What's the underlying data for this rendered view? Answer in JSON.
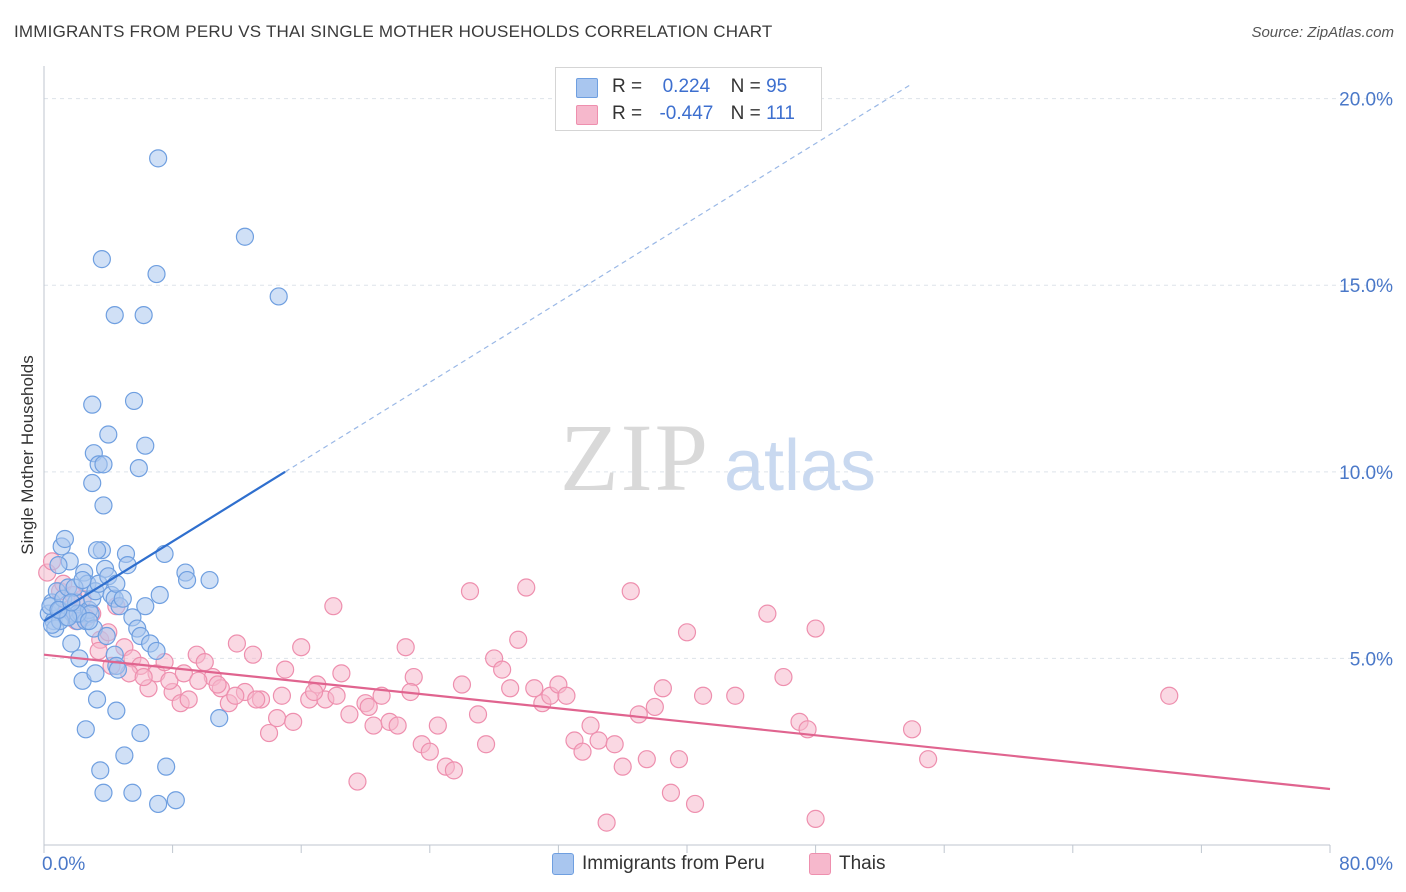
{
  "title": "IMMIGRANTS FROM PERU VS THAI SINGLE MOTHER HOUSEHOLDS CORRELATION CHART",
  "source": "Source: ZipAtlas.com",
  "watermark": {
    "zip": "ZIP",
    "atlas": "atlas"
  },
  "colors": {
    "blue_fill": "#a9c6ef",
    "blue_stroke": "#6f9fe0",
    "blue_line": "#2f6fce",
    "pink_fill": "#f6b8cc",
    "pink_stroke": "#ee8fae",
    "pink_line": "#e0648f",
    "axis_text": "#4a78c8",
    "grid": "#dde3ea"
  },
  "legend": {
    "rows": [
      {
        "r_label": "R =",
        "r_value": "0.224",
        "n_label": "N =",
        "n_value": "95"
      },
      {
        "r_label": "R =",
        "r_value": "-0.447",
        "n_label": "N =",
        "n_value": "111"
      }
    ]
  },
  "chart_data": {
    "type": "scatter",
    "xlabel": "",
    "ylabel": "Single Mother Households",
    "xlim": [
      0,
      80
    ],
    "ylim": [
      0,
      20.5
    ],
    "x_ticks": [
      "0.0%",
      "80.0%"
    ],
    "y_ticks": [
      {
        "value": 5,
        "label": "5.0%"
      },
      {
        "value": 10,
        "label": "10.0%"
      },
      {
        "value": 15,
        "label": "15.0%"
      },
      {
        "value": 20,
        "label": "20.0%"
      }
    ],
    "series": [
      {
        "name": "Immigrants from Peru",
        "color": "#a9c6ef",
        "trend": {
          "x0": 0,
          "y0": 6.0,
          "x1": 15,
          "y1": 10.0,
          "dashed_to_x": 54,
          "dashed_to_y": 20.4
        },
        "points": [
          [
            0.3,
            6.2
          ],
          [
            0.5,
            6.5
          ],
          [
            0.6,
            6.0
          ],
          [
            0.8,
            6.8
          ],
          [
            0.4,
            6.4
          ],
          [
            0.7,
            5.8
          ],
          [
            1.0,
            6.3
          ],
          [
            1.2,
            6.6
          ],
          [
            1.4,
            6.1
          ],
          [
            1.5,
            6.9
          ],
          [
            1.1,
            8.0
          ],
          [
            1.3,
            8.2
          ],
          [
            1.6,
            7.6
          ],
          [
            1.8,
            6.2
          ],
          [
            2.0,
            6.5
          ],
          [
            2.1,
            6.0
          ],
          [
            2.3,
            6.2
          ],
          [
            2.5,
            7.3
          ],
          [
            2.6,
            6.0
          ],
          [
            2.8,
            6.3
          ],
          [
            1.7,
            5.4
          ],
          [
            2.2,
            5.0
          ],
          [
            2.4,
            4.4
          ],
          [
            2.7,
            7.0
          ],
          [
            3.0,
            6.6
          ],
          [
            3.2,
            6.8
          ],
          [
            3.4,
            7.0
          ],
          [
            3.6,
            7.9
          ],
          [
            3.8,
            7.4
          ],
          [
            4.0,
            7.2
          ],
          [
            4.2,
            6.7
          ],
          [
            4.4,
            6.6
          ],
          [
            4.5,
            7.0
          ],
          [
            4.7,
            6.4
          ],
          [
            4.9,
            6.6
          ],
          [
            5.1,
            7.8
          ],
          [
            5.2,
            7.5
          ],
          [
            5.5,
            6.1
          ],
          [
            5.8,
            5.8
          ],
          [
            6.0,
            5.6
          ],
          [
            6.3,
            6.4
          ],
          [
            6.6,
            5.4
          ],
          [
            7.0,
            5.2
          ],
          [
            7.2,
            6.7
          ],
          [
            7.5,
            7.8
          ],
          [
            8.8,
            7.3
          ],
          [
            8.9,
            7.1
          ],
          [
            10.3,
            7.1
          ],
          [
            10.9,
            3.4
          ],
          [
            3.2,
            4.6
          ],
          [
            3.3,
            3.9
          ],
          [
            4.4,
            5.1
          ],
          [
            4.5,
            4.8
          ],
          [
            4.6,
            4.7
          ],
          [
            2.6,
            3.1
          ],
          [
            4.5,
            3.6
          ],
          [
            5.0,
            2.4
          ],
          [
            6.0,
            3.0
          ],
          [
            3.5,
            2.0
          ],
          [
            7.6,
            2.1
          ],
          [
            3.7,
            1.4
          ],
          [
            5.5,
            1.4
          ],
          [
            7.1,
            1.1
          ],
          [
            8.2,
            1.2
          ],
          [
            3.1,
            10.5
          ],
          [
            3.0,
            9.7
          ],
          [
            3.4,
            10.2
          ],
          [
            3.7,
            10.2
          ],
          [
            3.7,
            9.1
          ],
          [
            4.0,
            11.0
          ],
          [
            5.6,
            11.9
          ],
          [
            6.3,
            10.7
          ],
          [
            5.9,
            10.1
          ],
          [
            3.0,
            11.8
          ],
          [
            3.6,
            15.7
          ],
          [
            4.4,
            14.2
          ],
          [
            6.2,
            14.2
          ],
          [
            7.0,
            15.3
          ],
          [
            7.1,
            18.4
          ],
          [
            12.5,
            16.3
          ],
          [
            14.6,
            14.7
          ],
          [
            0.9,
            7.5
          ],
          [
            1.9,
            6.9
          ],
          [
            2.9,
            6.2
          ],
          [
            3.1,
            5.8
          ],
          [
            3.9,
            5.6
          ],
          [
            1.0,
            6.0
          ],
          [
            0.5,
            5.9
          ],
          [
            2.1,
            6.2
          ],
          [
            1.5,
            6.1
          ],
          [
            3.3,
            7.9
          ],
          [
            2.8,
            6.0
          ],
          [
            0.9,
            6.3
          ],
          [
            1.7,
            6.5
          ],
          [
            2.4,
            7.1
          ]
        ]
      },
      {
        "name": "Thais",
        "color": "#f6b8cc",
        "trend": {
          "x0": 0,
          "y0": 5.1,
          "x1": 80,
          "y1": 1.5
        },
        "points": [
          [
            0.2,
            7.3
          ],
          [
            0.5,
            7.6
          ],
          [
            1.0,
            6.8
          ],
          [
            1.5,
            6.3
          ],
          [
            2.0,
            6.0
          ],
          [
            2.4,
            6.6
          ],
          [
            3.0,
            6.2
          ],
          [
            3.5,
            5.5
          ],
          [
            4.0,
            5.7
          ],
          [
            4.5,
            6.4
          ],
          [
            5.0,
            5.3
          ],
          [
            5.5,
            5.0
          ],
          [
            6.0,
            4.8
          ],
          [
            6.5,
            4.2
          ],
          [
            7.0,
            4.6
          ],
          [
            7.5,
            4.9
          ],
          [
            8.0,
            4.1
          ],
          [
            8.5,
            3.8
          ],
          [
            9.0,
            3.9
          ],
          [
            9.5,
            5.1
          ],
          [
            10.0,
            4.9
          ],
          [
            10.5,
            4.5
          ],
          [
            11.0,
            4.2
          ],
          [
            11.5,
            3.8
          ],
          [
            12.0,
            5.4
          ],
          [
            12.5,
            4.1
          ],
          [
            13.0,
            5.1
          ],
          [
            13.5,
            3.9
          ],
          [
            14.0,
            3.0
          ],
          [
            14.5,
            3.4
          ],
          [
            15.0,
            4.7
          ],
          [
            15.5,
            3.3
          ],
          [
            16.0,
            5.3
          ],
          [
            16.5,
            3.9
          ],
          [
            17.0,
            4.3
          ],
          [
            17.5,
            3.9
          ],
          [
            18.0,
            6.4
          ],
          [
            18.5,
            4.6
          ],
          [
            19.0,
            3.5
          ],
          [
            19.5,
            1.7
          ],
          [
            20.0,
            3.8
          ],
          [
            20.5,
            3.2
          ],
          [
            21.0,
            4.0
          ],
          [
            21.5,
            3.3
          ],
          [
            22.0,
            3.2
          ],
          [
            22.5,
            5.3
          ],
          [
            23.0,
            4.5
          ],
          [
            23.5,
            2.7
          ],
          [
            24.0,
            2.5
          ],
          [
            24.5,
            3.2
          ],
          [
            25.0,
            2.1
          ],
          [
            25.5,
            2.0
          ],
          [
            26.0,
            4.3
          ],
          [
            26.5,
            6.8
          ],
          [
            27.0,
            3.5
          ],
          [
            27.5,
            2.7
          ],
          [
            28.0,
            5.0
          ],
          [
            28.5,
            4.7
          ],
          [
            29.0,
            4.2
          ],
          [
            29.5,
            5.5
          ],
          [
            30.0,
            6.9
          ],
          [
            30.5,
            4.2
          ],
          [
            31.0,
            3.8
          ],
          [
            31.5,
            4.0
          ],
          [
            32.0,
            4.3
          ],
          [
            32.5,
            4.0
          ],
          [
            33.0,
            2.8
          ],
          [
            33.5,
            2.5
          ],
          [
            34.0,
            3.2
          ],
          [
            34.5,
            2.8
          ],
          [
            35.0,
            0.6
          ],
          [
            35.5,
            2.7
          ],
          [
            36.0,
            2.1
          ],
          [
            36.5,
            6.8
          ],
          [
            37.0,
            3.5
          ],
          [
            37.5,
            2.3
          ],
          [
            38.0,
            3.7
          ],
          [
            38.5,
            4.2
          ],
          [
            39.0,
            1.4
          ],
          [
            39.5,
            2.3
          ],
          [
            40.0,
            5.7
          ],
          [
            40.5,
            1.1
          ],
          [
            41.0,
            4.0
          ],
          [
            43.0,
            4.0
          ],
          [
            45.0,
            6.2
          ],
          [
            46.0,
            4.5
          ],
          [
            47.0,
            3.3
          ],
          [
            47.5,
            3.1
          ],
          [
            48.0,
            0.7
          ],
          [
            48.0,
            5.8
          ],
          [
            54.0,
            3.1
          ],
          [
            55.0,
            2.3
          ],
          [
            70.0,
            4.0
          ],
          [
            1.2,
            7.0
          ],
          [
            1.8,
            6.7
          ],
          [
            2.6,
            6.1
          ],
          [
            3.4,
            5.2
          ],
          [
            4.2,
            4.8
          ],
          [
            5.3,
            4.6
          ],
          [
            6.2,
            4.5
          ],
          [
            7.8,
            4.4
          ],
          [
            8.7,
            4.6
          ],
          [
            9.6,
            4.4
          ],
          [
            10.8,
            4.3
          ],
          [
            11.9,
            4.0
          ],
          [
            13.2,
            3.9
          ],
          [
            14.8,
            4.0
          ],
          [
            16.8,
            4.1
          ],
          [
            18.2,
            4.0
          ],
          [
            20.2,
            3.7
          ],
          [
            22.8,
            4.1
          ]
        ]
      }
    ]
  }
}
